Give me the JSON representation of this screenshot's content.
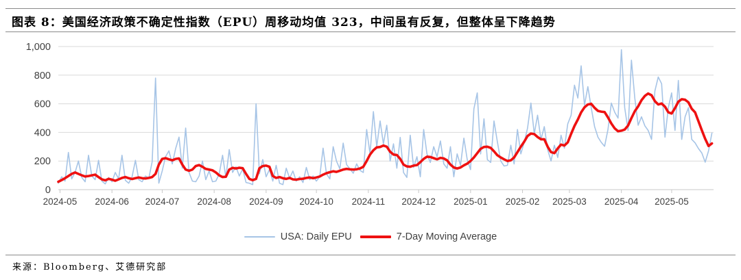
{
  "header": {
    "title": "图表 8：美国经济政策不确定性指数（EPU）周移动均值 323，中间虽有反复，但整体呈下降趋势"
  },
  "footer": {
    "source": "来源：Bloomberg、艾德研究部"
  },
  "chart_data": {
    "type": "line",
    "title": "美国经济政策不确定性指数（EPU）",
    "xlabel": "",
    "ylabel": "",
    "ylim": [
      0,
      1000
    ],
    "grid": true,
    "legend_position": "bottom",
    "background": "#ffffff",
    "grid_color": "#d9d9d9",
    "axis_color": "#c8c8c8",
    "label_color": "#404040",
    "yticks": [
      {
        "value": 0,
        "label": "0"
      },
      {
        "value": 200,
        "label": "200"
      },
      {
        "value": 400,
        "label": "400"
      },
      {
        "value": 600,
        "label": "600"
      },
      {
        "value": 800,
        "label": "800"
      },
      {
        "value": 1000,
        "label": "1,000"
      }
    ],
    "x_range_days": 391,
    "sample_step_days": 2,
    "month_ticks": [
      {
        "label": "2024-05",
        "day": 1
      },
      {
        "label": "2024-06",
        "day": 32
      },
      {
        "label": "2024-07",
        "day": 62
      },
      {
        "label": "2024-08",
        "day": 93
      },
      {
        "label": "2024-09",
        "day": 124
      },
      {
        "label": "2024-10",
        "day": 154
      },
      {
        "label": "2024-11",
        "day": 185
      },
      {
        "label": "2024-12",
        "day": 215
      },
      {
        "label": "2025-01",
        "day": 246
      },
      {
        "label": "2025-02",
        "day": 277
      },
      {
        "label": "2025-03",
        "day": 305
      },
      {
        "label": "2025-04",
        "day": 336
      },
      {
        "label": "2025-05",
        "day": 366
      }
    ],
    "series": [
      {
        "name": "USA: Daily EPU",
        "color": "#a6c4e6",
        "stroke_width": 1.6,
        "values": [
          45,
          90,
          60,
          260,
          75,
          120,
          200,
          85,
          55,
          240,
          95,
          70,
          205,
          60,
          40,
          85,
          55,
          120,
          75,
          240,
          65,
          45,
          90,
          205,
          70,
          55,
          95,
          80,
          195,
          780,
          45,
          130,
          230,
          271,
          180,
          287,
          367,
          150,
          430,
          120,
          60,
          55,
          95,
          200,
          70,
          130,
          55,
          60,
          110,
          240,
          85,
          280,
          120,
          160,
          95,
          145,
          50,
          45,
          35,
          600,
          110,
          210,
          90,
          140,
          60,
          170,
          45,
          35,
          150,
          80,
          130,
          60,
          90,
          50,
          155,
          70,
          95,
          60,
          90,
          290,
          110,
          75,
          300,
          200,
          145,
          325,
          175,
          145,
          115,
          180,
          135,
          120,
          420,
          250,
          545,
          300,
          480,
          320,
          450,
          200,
          320,
          150,
          365,
          120,
          85,
          380,
          155,
          230,
          90,
          420,
          250,
          190,
          300,
          230,
          340,
          180,
          150,
          300,
          90,
          250,
          170,
          360,
          210,
          140,
          565,
          676,
          250,
          495,
          210,
          190,
          480,
          335,
          200,
          165,
          170,
          310,
          180,
          420,
          250,
          330,
          430,
          605,
          390,
          520,
          350,
          440,
          280,
          200,
          310,
          225,
          380,
          290,
          460,
          520,
          730,
          640,
          865,
          590,
          720,
          573,
          440,
          367,
          330,
          303,
          420,
          605,
          541,
          500,
          978,
          573,
          414,
          905,
          640,
          450,
          509,
          446,
          414,
          351,
          690,
          787,
          740,
          367,
          573,
          676,
          414,
          763,
          351,
          509,
          573,
          351,
          327,
          287,
          256,
          192,
          271,
          395
        ]
      },
      {
        "name": "7-Day Moving Average",
        "color": "#ee1111",
        "stroke_width": 3.6,
        "values": [
          55,
          67,
          80,
          95,
          110,
          120,
          110,
          100,
          92,
          95,
          100,
          105,
          88,
          72,
          65,
          75,
          70,
          62,
          72,
          82,
          88,
          80,
          74,
          80,
          85,
          80,
          78,
          82,
          88,
          110,
          175,
          215,
          220,
          212,
          205,
          215,
          218,
          175,
          140,
          132,
          140,
          165,
          172,
          160,
          145,
          140,
          135,
          120,
          100,
          88,
          90,
          140,
          152,
          148,
          153,
          150,
          110,
          75,
          66,
          75,
          150,
          165,
          168,
          160,
          95,
          82,
          88,
          80,
          75,
          82,
          72,
          70,
          74,
          76,
          82,
          85,
          80,
          85,
          92,
          105,
          115,
          122,
          128,
          124,
          132,
          140,
          145,
          142,
          140,
          142,
          148,
          160,
          200,
          245,
          275,
          295,
          298,
          308,
          300,
          265,
          245,
          242,
          215,
          175,
          162,
          160,
          168,
          172,
          192,
          215,
          230,
          228,
          220,
          212,
          222,
          218,
          205,
          175,
          155,
          148,
          155,
          170,
          182,
          200,
          225,
          255,
          285,
          298,
          300,
          292,
          268,
          240,
          225,
          212,
          200,
          205,
          225,
          262,
          300,
          335,
          375,
          392,
          388,
          368,
          352,
          352,
          300,
          262,
          255,
          288,
          315,
          308,
          330,
          390,
          445,
          490,
          540,
          575,
          595,
          600,
          572,
          550,
          545,
          542,
          505,
          462,
          428,
          408,
          412,
          420,
          448,
          500,
          548,
          582,
          625,
          655,
          672,
          660,
          618,
          595,
          602,
          580,
          540,
          532,
          570,
          615,
          632,
          628,
          610,
          565,
          540,
          478,
          415,
          355,
          305,
          323
        ]
      }
    ]
  }
}
